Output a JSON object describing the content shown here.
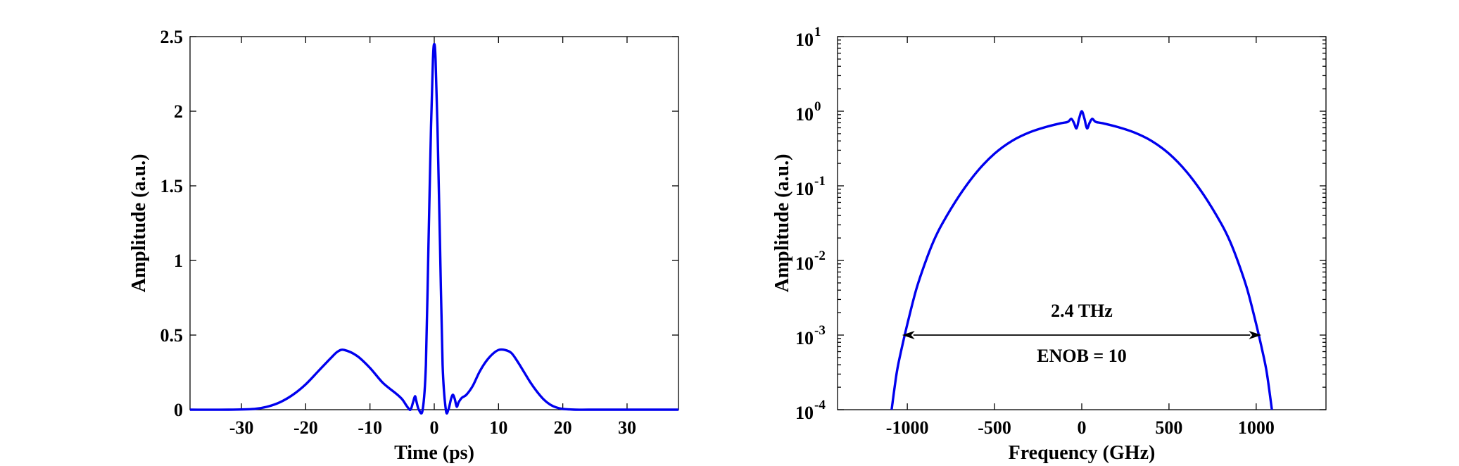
{
  "chart_data": [
    {
      "type": "line",
      "xlabel": "Time (ps)",
      "ylabel": "Amplitude (a.u.)",
      "xlim": [
        -38,
        38
      ],
      "ylim": [
        0,
        2.5
      ],
      "xticks": [
        -30,
        -20,
        -10,
        0,
        10,
        20,
        30
      ],
      "xtick_labels": [
        "-30",
        "-20",
        "-10",
        "0",
        "10",
        "20",
        "30"
      ],
      "yticks": [
        0,
        0.5,
        1,
        1.5,
        2,
        2.5
      ],
      "ytick_labels": [
        "0",
        "0.5",
        "1",
        "1.5",
        "2",
        "2.5"
      ],
      "grid": false,
      "series": [
        {
          "color": "#0000ee",
          "x": [
            -38,
            -32,
            -28,
            -26,
            -24,
            -22,
            -20,
            -18,
            -16,
            -15,
            -14,
            -12,
            -10,
            -8,
            -6,
            -5,
            -4.2,
            -3.7,
            -3.3,
            -3.0,
            -2.8,
            -2.4,
            -1.8,
            -1.3,
            -0.9,
            -0.5,
            -0.2,
            0,
            0.2,
            0.5,
            0.9,
            1.3,
            1.8,
            2.2,
            2.6,
            2.9,
            3.2,
            3.5,
            3.8,
            4.3,
            5,
            6,
            7,
            8,
            9,
            10,
            11,
            12,
            13,
            14,
            15,
            16,
            17,
            18,
            19,
            20,
            21,
            22,
            24,
            28,
            32,
            38
          ],
          "y": [
            0,
            0,
            0.005,
            0.02,
            0.05,
            0.1,
            0.17,
            0.26,
            0.35,
            0.39,
            0.4,
            0.36,
            0.28,
            0.18,
            0.11,
            0.07,
            0.02,
            0.0,
            0.05,
            0.09,
            0.06,
            0.0,
            0.0,
            0.3,
            1.1,
            1.9,
            2.35,
            2.45,
            2.35,
            1.9,
            1.1,
            0.3,
            0.0,
            0.0,
            0.07,
            0.1,
            0.07,
            0.02,
            0.05,
            0.08,
            0.1,
            0.16,
            0.25,
            0.32,
            0.37,
            0.4,
            0.4,
            0.38,
            0.32,
            0.25,
            0.18,
            0.12,
            0.07,
            0.035,
            0.015,
            0.005,
            0.002,
            0,
            0,
            0,
            0,
            0
          ]
        }
      ]
    },
    {
      "type": "line",
      "xlabel": "Frequency (GHz)",
      "ylabel": "Amplitude (a.u.)",
      "yscale": "log",
      "xlim": [
        -1400,
        1400
      ],
      "ylim": [
        0.0001,
        10
      ],
      "xticks": [
        -1000,
        -500,
        0,
        500,
        1000
      ],
      "xtick_labels": [
        "-1000",
        "-500",
        "0",
        "500",
        "1000"
      ],
      "yticks": [
        0.0001,
        0.001,
        0.01,
        0.1,
        1,
        10
      ],
      "ytick_labels": [
        {
          "base": "10",
          "exp": "-4"
        },
        {
          "base": "10",
          "exp": "-3"
        },
        {
          "base": "10",
          "exp": "-2"
        },
        {
          "base": "10",
          "exp": "-1"
        },
        {
          "base": "10",
          "exp": "0"
        },
        {
          "base": "10",
          "exp": "1"
        }
      ],
      "grid": false,
      "series": [
        {
          "color": "#0000ee",
          "x": [
            -1090,
            -1060,
            -1030,
            -1000,
            -950,
            -900,
            -850,
            -800,
            -700,
            -600,
            -500,
            -400,
            -300,
            -200,
            -120,
            -80,
            -60,
            -45,
            -30,
            -15,
            0,
            15,
            30,
            45,
            60,
            80,
            120,
            200,
            300,
            400,
            500,
            600,
            700,
            800,
            850,
            900,
            950,
            1000,
            1030,
            1060,
            1090
          ],
          "y": [
            0.0001,
            0.00032,
            0.0007,
            0.0014,
            0.004,
            0.009,
            0.018,
            0.031,
            0.075,
            0.155,
            0.27,
            0.4,
            0.52,
            0.62,
            0.69,
            0.72,
            0.79,
            0.7,
            0.59,
            0.8,
            1.0,
            0.8,
            0.59,
            0.7,
            0.79,
            0.72,
            0.69,
            0.62,
            0.52,
            0.4,
            0.27,
            0.155,
            0.075,
            0.031,
            0.018,
            0.009,
            0.004,
            0.0014,
            0.0007,
            0.00032,
            0.0001
          ]
        }
      ],
      "annotations": {
        "bandwidth_label": "2.4 THz",
        "enob_label": "ENOB = 10",
        "arrow_from_x": -1030,
        "arrow_to_x": 1030,
        "arrow_y": 0.001
      }
    }
  ]
}
